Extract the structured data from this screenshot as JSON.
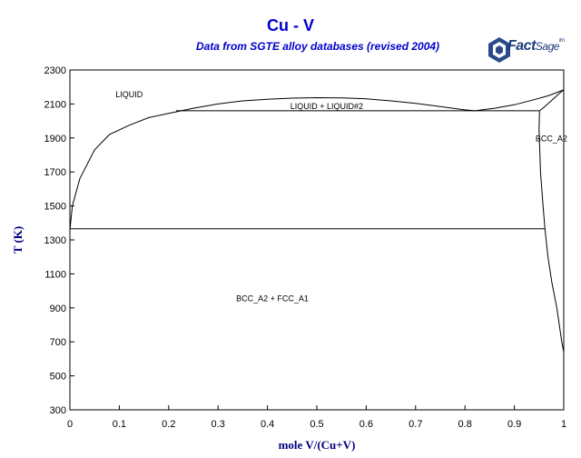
{
  "header": {
    "title": "Cu - V",
    "subtitle": "Data from SGTE alloy databases (revised 2004)",
    "logo": {
      "fact": "Fact",
      "sage": "Sage",
      "tm": "tm"
    }
  },
  "chart_data": {
    "type": "line",
    "title": "Cu - V",
    "subtitle": "Data from SGTE alloy databases (revised 2004)",
    "xlabel": "mole V/(Cu+V)",
    "ylabel": "T (K)",
    "xlim": [
      0,
      1
    ],
    "ylim": [
      300,
      2300
    ],
    "xticks": [
      "0",
      "0.1",
      "0.2",
      "0.3",
      "0.4",
      "0.5",
      "0.6",
      "0.7",
      "0.8",
      "0.9",
      "1"
    ],
    "yticks": [
      "300",
      "500",
      "700",
      "900",
      "1100",
      "1300",
      "1500",
      "1700",
      "1900",
      "2100",
      "2300"
    ],
    "grid": false,
    "region_labels": [
      {
        "text": "LIQUID",
        "x": 0.12,
        "y": 2140
      },
      {
        "text": "LIQUID + LIQUID#2",
        "x": 0.52,
        "y": 2070
      },
      {
        "text": "BCC_A2",
        "x": 0.975,
        "y": 1880
      },
      {
        "text": "BCC_A2 + FCC_A1",
        "x": 0.41,
        "y": 940
      }
    ],
    "series": [
      {
        "values": [
          [
            0,
            1358
          ],
          [
            0.005,
            1500
          ],
          [
            0.02,
            1660
          ],
          [
            0.05,
            1830
          ],
          [
            0.08,
            1920
          ],
          [
            0.12,
            1975
          ],
          [
            0.16,
            2020
          ],
          [
            0.2,
            2045
          ],
          [
            0.25,
            2075
          ],
          [
            0.3,
            2100
          ],
          [
            0.35,
            2118
          ],
          [
            0.4,
            2128
          ],
          [
            0.45,
            2134
          ],
          [
            0.5,
            2137
          ],
          [
            0.55,
            2136
          ],
          [
            0.6,
            2130
          ],
          [
            0.65,
            2118
          ],
          [
            0.7,
            2103
          ],
          [
            0.75,
            2085
          ],
          [
            0.8,
            2065
          ],
          [
            0.82,
            2060
          ]
        ]
      },
      {
        "values": [
          [
            0.82,
            2060
          ],
          [
            0.86,
            2075
          ],
          [
            0.9,
            2095
          ],
          [
            0.94,
            2125
          ],
          [
            0.97,
            2150
          ],
          [
            1.0,
            2183
          ]
        ]
      },
      {
        "values": [
          [
            0.215,
            2060
          ],
          [
            0.951,
            2060
          ]
        ]
      },
      {
        "values": [
          [
            0.951,
            2060
          ],
          [
            0.96,
            2080
          ],
          [
            0.975,
            2120
          ],
          [
            0.99,
            2160
          ],
          [
            1.0,
            2183
          ]
        ]
      },
      {
        "values": [
          [
            0.951,
            2060
          ],
          [
            0.95,
            1950
          ],
          [
            0.953,
            1700
          ],
          [
            0.958,
            1500
          ],
          [
            0.962,
            1365
          ],
          [
            0.968,
            1200
          ],
          [
            0.976,
            1050
          ],
          [
            0.986,
            900
          ],
          [
            0.996,
            700
          ],
          [
            1.0,
            640
          ]
        ]
      },
      {
        "values": [
          [
            0,
            1365
          ],
          [
            0.962,
            1365
          ]
        ]
      },
      {
        "values": [
          [
            0,
            1358
          ],
          [
            0,
            1180
          ]
        ]
      }
    ]
  }
}
